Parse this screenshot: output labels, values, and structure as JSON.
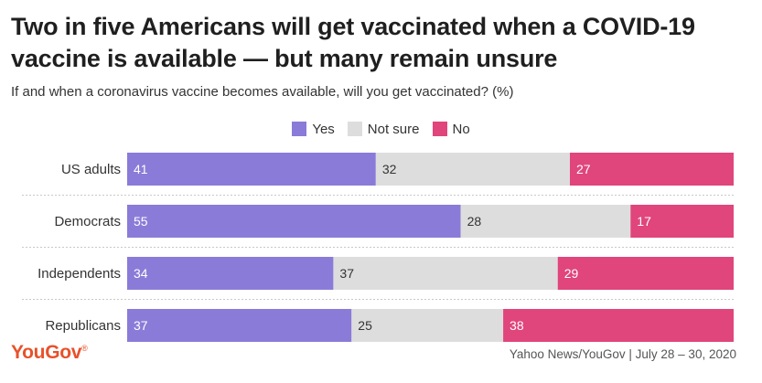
{
  "title": "Two in five Americans will get vaccinated when a COVID-19 vaccine is available — but many remain unsure",
  "subtitle": "If and when a coronavirus vaccine becomes available, will you get vaccinated? (%)",
  "logo": "YouGov",
  "source": "Yahoo News/YouGov | July 28 – 30, 2020",
  "colors": {
    "yes": "#8b7bd8",
    "not_sure": "#dddddd",
    "no": "#e0457b"
  },
  "legend": [
    {
      "label": "Yes",
      "color": "#8b7bd8"
    },
    {
      "label": "Not sure",
      "color": "#dddddd"
    },
    {
      "label": "No",
      "color": "#e0457b"
    }
  ],
  "chart_data": {
    "type": "bar",
    "stacked": true,
    "orientation": "horizontal",
    "percent": true,
    "categories": [
      "US adults",
      "Democrats",
      "Independents",
      "Republicans"
    ],
    "series": [
      {
        "name": "Yes",
        "values": [
          41,
          55,
          34,
          37
        ]
      },
      {
        "name": "Not sure",
        "values": [
          32,
          28,
          37,
          25
        ]
      },
      {
        "name": "No",
        "values": [
          27,
          17,
          29,
          38
        ]
      }
    ],
    "xlim": [
      0,
      100
    ],
    "legend_position": "top-center",
    "grid": false
  }
}
